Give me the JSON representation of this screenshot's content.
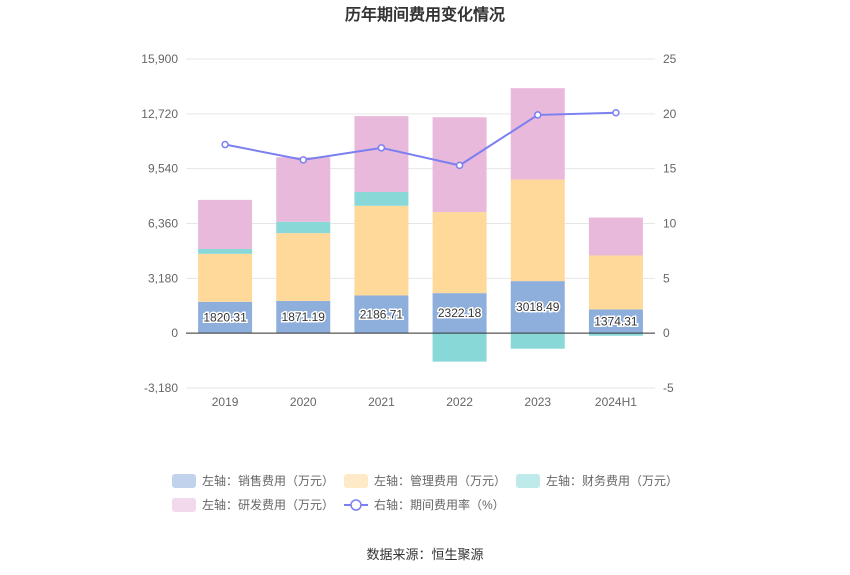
{
  "chart_data": {
    "type": "bar",
    "title": "历年期间费用变化情况",
    "categories": [
      "2019",
      "2020",
      "2021",
      "2022",
      "2023",
      "2024H1"
    ],
    "left_axis": {
      "ticks": [
        "15,900",
        "12,720",
        "9,540",
        "6,360",
        "3,180",
        "0",
        "-3,180"
      ],
      "ylim": [
        -3180,
        15900
      ]
    },
    "right_axis": {
      "ticks": [
        "25",
        "20",
        "15",
        "10",
        "5",
        "0",
        "-5"
      ],
      "ylim": [
        -5,
        25
      ]
    },
    "series": [
      {
        "name": "左轴：销售费用（万元）",
        "kind": "stacked-bar",
        "color": "#8eaedc",
        "values": [
          1820.31,
          1871.19,
          2186.71,
          2322.18,
          3018.49,
          1374.31
        ],
        "labels": [
          "1820.31",
          "1871.19",
          "2186.71",
          "2322.18",
          "3018.49",
          "1374.31"
        ]
      },
      {
        "name": "左轴：管理费用（万元）",
        "kind": "stacked-bar",
        "color": "#ffd99a",
        "values": [
          2780,
          3930,
          5200,
          4700,
          5890,
          3130
        ]
      },
      {
        "name": "左轴：财务费用（万元）",
        "kind": "stacked-bar",
        "color": "#88d8d8",
        "values": [
          280,
          660,
          800,
          -1650,
          -900,
          -150
        ]
      },
      {
        "name": "左轴：研发费用（万元）",
        "kind": "stacked-bar",
        "color": "#e8b9db",
        "values": [
          2850,
          3740,
          4400,
          5500,
          5300,
          2200
        ]
      },
      {
        "name": "右轴：期间费用率（%）",
        "kind": "line",
        "color": "#7b7ff0",
        "values": [
          17.2,
          15.8,
          16.9,
          15.3,
          19.9,
          20.1
        ]
      }
    ],
    "legend_position": "bottom",
    "grid": true
  },
  "source_label": "数据来源：恒生聚源"
}
